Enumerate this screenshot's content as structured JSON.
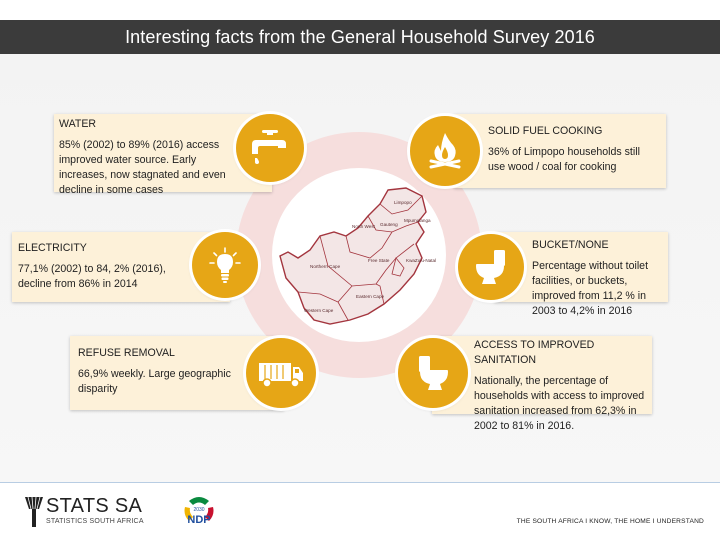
{
  "title": "Interesting facts from the General Household Survey 2016",
  "colors": {
    "title_bar": "#3b3b3b",
    "card_background": "#fdf1d9",
    "icon_badge": "#e6a616",
    "ring": "#f6dedd",
    "map_outline": "#a3353e"
  },
  "facts": {
    "water": {
      "heading": "WATER",
      "text": "85% (2002) to 89% (2016) access improved water source. Early increases, now stagnated and even decline in some cases",
      "icon": "water-tap-icon"
    },
    "electricity": {
      "heading": "ELECTRICITY",
      "text": "77,1% (2002) to 84, 2% (2016), decline from 86% in 2014",
      "icon": "light-bulb-icon"
    },
    "refuse": {
      "heading": "REFUSE REMOVAL",
      "text": "66,9% weekly. Large geographic disparity",
      "icon": "refuse-truck-icon"
    },
    "solid_fuel": {
      "heading": "SOLID FUEL COOKING",
      "text": "36% of Limpopo households still use wood / coal for cooking",
      "icon": "fire-icon"
    },
    "bucket": {
      "heading": "BUCKET/NONE",
      "text": "Percentage without toilet facilities, or buckets, improved from 11,2 % in 2003 to 4,2% in 2016",
      "icon": "toilet-icon"
    },
    "sanitation": {
      "heading": "ACCESS TO IMPROVED SANITATION",
      "text": "Nationally, the percentage of households with access to improved sanitation increased from 62,3% in 2002 to 81% in 2016.",
      "icon": "toilet-icon"
    }
  },
  "map": {
    "provinces": [
      "Limpopo",
      "Mpumalanga",
      "North West",
      "Gauteng",
      "KwaZulu-Natal",
      "Free State",
      "Northern Cape",
      "Eastern Cape",
      "Western Cape"
    ]
  },
  "footer": {
    "org_name": "STATS SA",
    "org_subtitle": "STATISTICS SOUTH AFRICA",
    "ndp_label": "NDP",
    "ndp_year": "2030",
    "tagline": "THE SOUTH AFRICA I KNOW, THE HOME I UNDERSTAND"
  }
}
